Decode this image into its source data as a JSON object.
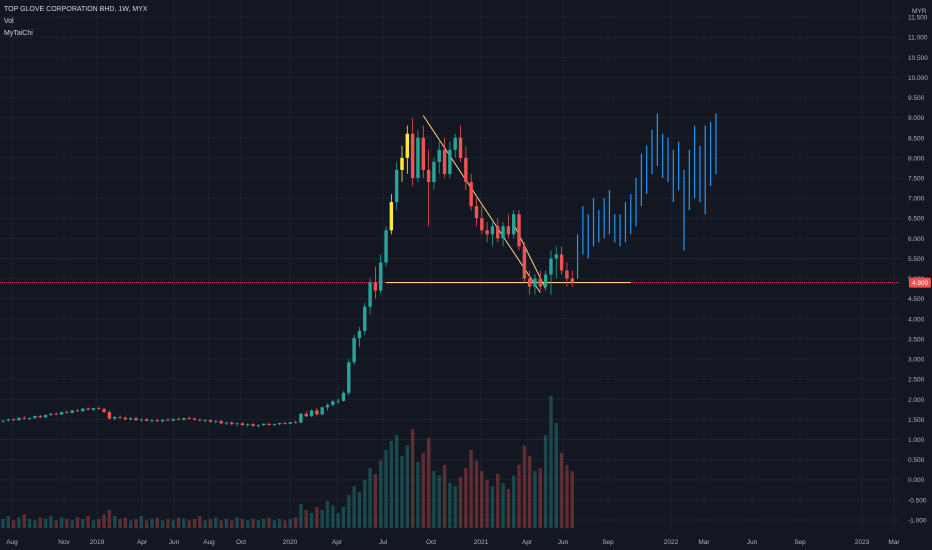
{
  "header": {
    "title": "TOP GLOVE CORPORATION BHD, 1W, MYX",
    "indicators": [
      "Vol",
      "MyTaiChi"
    ]
  },
  "colors": {
    "background": "#131722",
    "up": "#26a69a",
    "down": "#ef5350",
    "projection": "#2196f3",
    "highlight": "#ffeb3b",
    "trendline": "#ffd180",
    "price_line": "#ef5350",
    "axis_text": "#b2b5be"
  },
  "chart_data": {
    "type": "candlestick",
    "currency": "MYR",
    "y_ticks": [
      "11.500",
      "11.000",
      "10.500",
      "10.000",
      "9.500",
      "9.000",
      "8.500",
      "8.000",
      "7.500",
      "7.000",
      "6.500",
      "6.000",
      "5.500",
      "5.000",
      "4.500",
      "4.000",
      "3.500",
      "3.000",
      "2.500",
      "2.000",
      "1.500",
      "1.000",
      "0.500",
      "0.000",
      "-0.500",
      "-1.000"
    ],
    "x_ticks": [
      "Aug",
      "Nov",
      "2019",
      "Apr",
      "Jun",
      "Aug",
      "Oct",
      "2020",
      "Apr",
      "Jul",
      "Oct",
      "2021",
      "Apr",
      "Jun",
      "Sep",
      "2022",
      "Mar",
      "Jun",
      "Sep",
      "2023",
      "Mar"
    ],
    "ylim": [
      -1.2,
      11.75
    ],
    "last_price": "4.900",
    "candles": [
      [
        1.45,
        1.48,
        1.41,
        1.47
      ],
      [
        1.47,
        1.52,
        1.45,
        1.5
      ],
      [
        1.5,
        1.53,
        1.46,
        1.48
      ],
      [
        1.48,
        1.55,
        1.47,
        1.54
      ],
      [
        1.54,
        1.58,
        1.5,
        1.52
      ],
      [
        1.52,
        1.55,
        1.48,
        1.53
      ],
      [
        1.53,
        1.6,
        1.52,
        1.58
      ],
      [
        1.58,
        1.61,
        1.53,
        1.55
      ],
      [
        1.55,
        1.62,
        1.54,
        1.61
      ],
      [
        1.61,
        1.66,
        1.58,
        1.64
      ],
      [
        1.64,
        1.67,
        1.6,
        1.62
      ],
      [
        1.62,
        1.7,
        1.61,
        1.68
      ],
      [
        1.68,
        1.72,
        1.64,
        1.66
      ],
      [
        1.66,
        1.74,
        1.65,
        1.72
      ],
      [
        1.72,
        1.76,
        1.68,
        1.7
      ],
      [
        1.7,
        1.78,
        1.69,
        1.77
      ],
      [
        1.77,
        1.8,
        1.72,
        1.74
      ],
      [
        1.74,
        1.79,
        1.71,
        1.78
      ],
      [
        1.78,
        1.82,
        1.74,
        1.76
      ],
      [
        1.76,
        1.78,
        1.66,
        1.68
      ],
      [
        1.68,
        1.72,
        1.5,
        1.52
      ],
      [
        1.52,
        1.58,
        1.48,
        1.56
      ],
      [
        1.56,
        1.6,
        1.52,
        1.54
      ],
      [
        1.54,
        1.57,
        1.48,
        1.5
      ],
      [
        1.5,
        1.55,
        1.47,
        1.53
      ],
      [
        1.53,
        1.56,
        1.46,
        1.48
      ],
      [
        1.48,
        1.52,
        1.44,
        1.5
      ],
      [
        1.5,
        1.53,
        1.45,
        1.46
      ],
      [
        1.46,
        1.5,
        1.42,
        1.48
      ],
      [
        1.48,
        1.51,
        1.44,
        1.45
      ],
      [
        1.45,
        1.5,
        1.42,
        1.49
      ],
      [
        1.49,
        1.53,
        1.46,
        1.47
      ],
      [
        1.47,
        1.52,
        1.45,
        1.51
      ],
      [
        1.51,
        1.55,
        1.48,
        1.49
      ],
      [
        1.49,
        1.54,
        1.47,
        1.53
      ],
      [
        1.53,
        1.57,
        1.5,
        1.52
      ],
      [
        1.52,
        1.55,
        1.48,
        1.49
      ],
      [
        1.49,
        1.52,
        1.45,
        1.47
      ],
      [
        1.47,
        1.5,
        1.43,
        1.48
      ],
      [
        1.48,
        1.5,
        1.42,
        1.44
      ],
      [
        1.44,
        1.48,
        1.4,
        1.46
      ],
      [
        1.46,
        1.48,
        1.38,
        1.4
      ],
      [
        1.4,
        1.44,
        1.36,
        1.42
      ],
      [
        1.42,
        1.45,
        1.36,
        1.38
      ],
      [
        1.38,
        1.42,
        1.33,
        1.4
      ],
      [
        1.4,
        1.43,
        1.34,
        1.36
      ],
      [
        1.36,
        1.4,
        1.31,
        1.38
      ],
      [
        1.38,
        1.41,
        1.32,
        1.34
      ],
      [
        1.34,
        1.38,
        1.3,
        1.36
      ],
      [
        1.36,
        1.4,
        1.33,
        1.39
      ],
      [
        1.39,
        1.42,
        1.34,
        1.36
      ],
      [
        1.36,
        1.4,
        1.33,
        1.38
      ],
      [
        1.38,
        1.42,
        1.35,
        1.41
      ],
      [
        1.41,
        1.45,
        1.37,
        1.39
      ],
      [
        1.39,
        1.44,
        1.37,
        1.43
      ],
      [
        1.43,
        1.47,
        1.4,
        1.42
      ],
      [
        1.42,
        1.66,
        1.4,
        1.64
      ],
      [
        1.64,
        1.7,
        1.55,
        1.58
      ],
      [
        1.58,
        1.75,
        1.56,
        1.72
      ],
      [
        1.72,
        1.78,
        1.6,
        1.62
      ],
      [
        1.62,
        1.82,
        1.6,
        1.8
      ],
      [
        1.8,
        1.9,
        1.72,
        1.86
      ],
      [
        1.86,
        1.98,
        1.82,
        1.95
      ],
      [
        1.95,
        2.02,
        1.88,
        1.96
      ],
      [
        1.96,
        2.2,
        1.94,
        2.16
      ],
      [
        2.16,
        3.0,
        2.1,
        2.92
      ],
      [
        2.92,
        3.6,
        2.86,
        3.52
      ],
      [
        3.52,
        3.8,
        3.3,
        3.7
      ],
      [
        3.7,
        4.4,
        3.6,
        4.3
      ],
      [
        4.3,
        5.0,
        4.1,
        4.9
      ],
      [
        4.9,
        5.3,
        4.5,
        4.7
      ],
      [
        4.7,
        5.6,
        4.62,
        5.4
      ],
      [
        5.4,
        6.3,
        5.3,
        6.2
      ],
      [
        6.2,
        7.1,
        6.1,
        6.9
      ],
      [
        6.9,
        7.9,
        6.7,
        7.7
      ],
      [
        7.7,
        8.3,
        7.4,
        8.0
      ],
      [
        8.0,
        8.8,
        7.6,
        8.6
      ],
      [
        8.6,
        9.0,
        7.3,
        7.5
      ],
      [
        7.5,
        8.7,
        7.4,
        8.5
      ],
      [
        8.5,
        8.8,
        7.5,
        7.7
      ],
      [
        7.7,
        8.2,
        6.3,
        7.4
      ],
      [
        7.4,
        8.0,
        7.2,
        7.9
      ],
      [
        7.9,
        8.4,
        7.6,
        8.2
      ],
      [
        8.2,
        8.5,
        7.5,
        7.6
      ],
      [
        7.6,
        8.4,
        7.5,
        8.2
      ],
      [
        8.2,
        8.6,
        8.0,
        8.5
      ],
      [
        8.5,
        8.8,
        7.9,
        8.0
      ],
      [
        8.0,
        8.3,
        7.2,
        7.4
      ],
      [
        7.4,
        7.6,
        6.7,
        6.8
      ],
      [
        6.8,
        7.0,
        6.3,
        6.5
      ],
      [
        6.5,
        6.8,
        6.1,
        6.2
      ],
      [
        6.2,
        6.4,
        5.9,
        6.1
      ],
      [
        6.1,
        6.4,
        5.8,
        6.3
      ],
      [
        6.3,
        6.5,
        5.9,
        6.0
      ],
      [
        6.0,
        6.4,
        5.8,
        6.3
      ],
      [
        6.3,
        6.6,
        6.0,
        6.1
      ],
      [
        6.1,
        6.7,
        6.0,
        6.6
      ],
      [
        6.6,
        6.7,
        5.7,
        5.8
      ],
      [
        5.8,
        5.9,
        4.9,
        5.0
      ],
      [
        5.0,
        5.2,
        4.6,
        4.8
      ],
      [
        4.8,
        5.1,
        4.6,
        5.0
      ],
      [
        5.0,
        5.2,
        4.7,
        4.8
      ],
      [
        4.8,
        5.2,
        4.7,
        5.1
      ],
      [
        5.1,
        5.7,
        4.6,
        5.5
      ],
      [
        5.5,
        5.8,
        5.0,
        5.6
      ],
      [
        5.6,
        5.8,
        5.1,
        5.2
      ],
      [
        5.2,
        5.4,
        4.8,
        5.0
      ],
      [
        5.0,
        5.2,
        4.8,
        4.9
      ]
    ],
    "projection": [
      [
        5.0,
        6.1
      ],
      [
        5.6,
        6.8
      ],
      [
        5.5,
        6.6
      ],
      [
        5.8,
        7.0
      ],
      [
        5.9,
        6.7
      ],
      [
        6.0,
        7.0
      ],
      [
        6.1,
        7.2
      ],
      [
        5.9,
        6.6
      ],
      [
        5.8,
        6.6
      ],
      [
        5.9,
        6.9
      ],
      [
        6.1,
        7.1
      ],
      [
        6.3,
        7.5
      ],
      [
        6.8,
        8.1
      ],
      [
        7.1,
        8.3
      ],
      [
        7.6,
        8.7
      ],
      [
        7.8,
        9.1
      ],
      [
        7.5,
        8.6
      ],
      [
        7.4,
        8.5
      ],
      [
        6.9,
        8.2
      ],
      [
        7.2,
        8.4
      ],
      [
        5.7,
        7.7
      ],
      [
        6.7,
        8.2
      ],
      [
        7.0,
        8.8
      ],
      [
        6.9,
        8.3
      ],
      [
        6.6,
        8.8
      ],
      [
        7.3,
        8.9
      ],
      [
        7.6,
        9.1
      ]
    ],
    "volume": [
      0.06,
      0.08,
      0.05,
      0.07,
      0.09,
      0.06,
      0.05,
      0.07,
      0.06,
      0.08,
      0.05,
      0.07,
      0.06,
      0.05,
      0.07,
      0.06,
      0.08,
      0.05,
      0.06,
      0.09,
      0.12,
      0.08,
      0.06,
      0.07,
      0.05,
      0.06,
      0.08,
      0.05,
      0.06,
      0.07,
      0.05,
      0.06,
      0.05,
      0.07,
      0.06,
      0.05,
      0.06,
      0.08,
      0.05,
      0.06,
      0.07,
      0.05,
      0.06,
      0.05,
      0.07,
      0.06,
      0.05,
      0.06,
      0.05,
      0.06,
      0.07,
      0.05,
      0.06,
      0.05,
      0.06,
      0.07,
      0.16,
      0.12,
      0.1,
      0.14,
      0.12,
      0.18,
      0.15,
      0.1,
      0.14,
      0.22,
      0.28,
      0.24,
      0.32,
      0.4,
      0.36,
      0.45,
      0.52,
      0.58,
      0.62,
      0.48,
      0.55,
      0.66,
      0.44,
      0.5,
      0.6,
      0.38,
      0.35,
      0.42,
      0.3,
      0.28,
      0.34,
      0.4,
      0.52,
      0.45,
      0.38,
      0.32,
      0.28,
      0.36,
      0.3,
      0.26,
      0.35,
      0.42,
      0.55,
      0.48,
      0.38,
      0.4,
      0.62,
      0.88,
      0.7,
      0.5,
      0.42,
      0.38
    ],
    "annotations": {
      "support_level": 4.9,
      "support_x_range": [
        72,
        118
      ],
      "trend_line_1": [
        [
          79,
          9.05
        ],
        [
          101,
          4.65
        ]
      ],
      "trend_line_2": [
        [
          96,
          6.35
        ],
        [
          102,
          4.75
        ]
      ],
      "highlight_candles": [
        73,
        75,
        76
      ]
    }
  }
}
